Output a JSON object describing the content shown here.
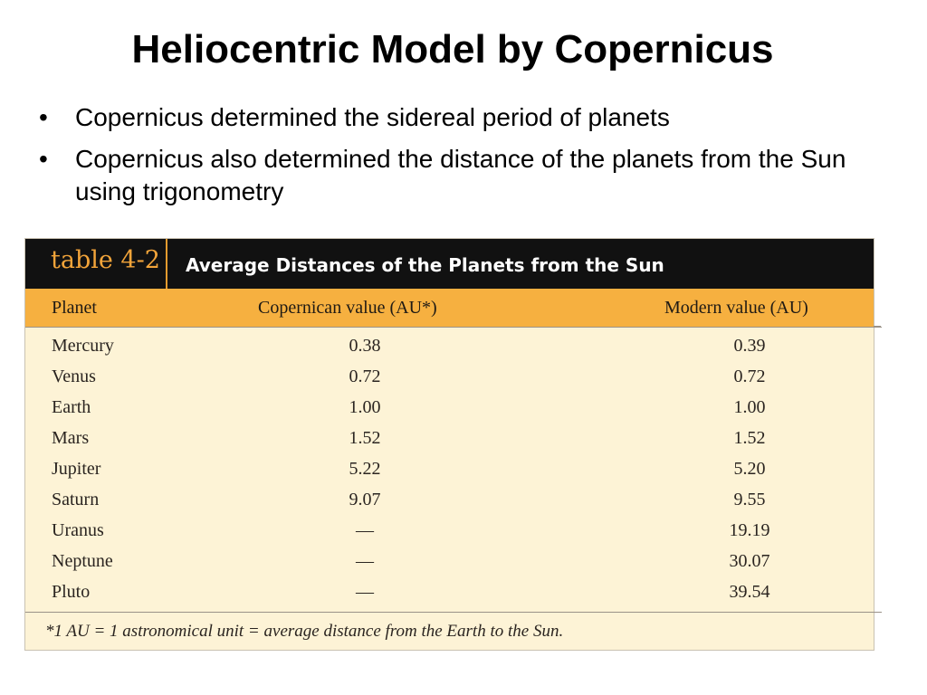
{
  "slide": {
    "title": "Heliocentric Model by Copernicus",
    "bullets": [
      "Copernicus determined the sidereal period of planets",
      "Copernicus also determined the distance of the planets from the Sun using trigonometry"
    ]
  },
  "table": {
    "tag": "table 4-2",
    "caption": "Average Distances of the Planets from the Sun",
    "columns": {
      "planet": "Planet",
      "copernican": "Copernican value (AU*)",
      "modern": "Modern value (AU)"
    },
    "rows": [
      {
        "planet": "Mercury",
        "copernican": "0.38",
        "modern": "0.39"
      },
      {
        "planet": "Venus",
        "copernican": "0.72",
        "modern": "0.72"
      },
      {
        "planet": "Earth",
        "copernican": "1.00",
        "modern": "1.00"
      },
      {
        "planet": "Mars",
        "copernican": "1.52",
        "modern": "1.52"
      },
      {
        "planet": "Jupiter",
        "copernican": "5.22",
        "modern": "5.20"
      },
      {
        "planet": "Saturn",
        "copernican": "9.07",
        "modern": "9.55"
      },
      {
        "planet": "Uranus",
        "copernican": "—",
        "modern": "19.19"
      },
      {
        "planet": "Neptune",
        "copernican": "—",
        "modern": "30.07"
      },
      {
        "planet": "Pluto",
        "copernican": "—",
        "modern": "39.54"
      }
    ],
    "footnote": "*1 AU = 1 astronomical unit = average distance from the Earth to the Sun."
  },
  "colors": {
    "header_bar": "#111111",
    "accent_orange": "#f6b040",
    "table_background": "#fdf3d6",
    "tag_color": "#f2a43a"
  }
}
